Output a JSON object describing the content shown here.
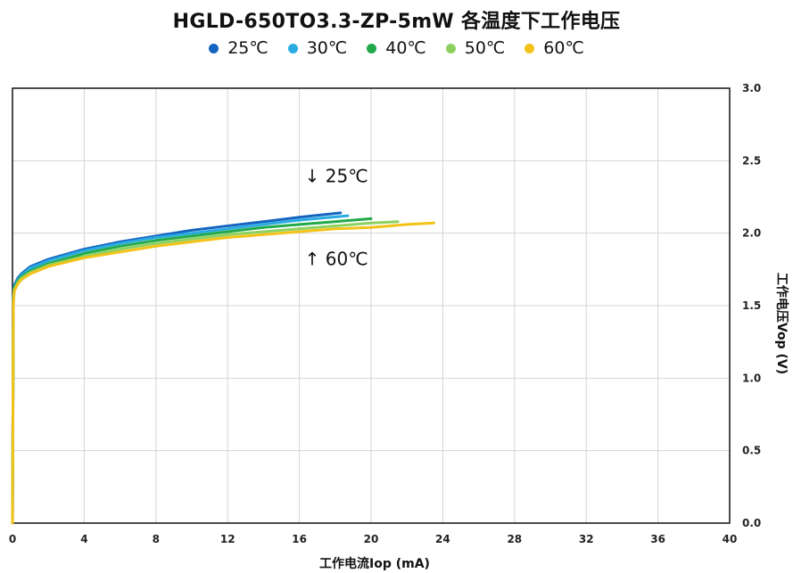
{
  "chart_data": {
    "type": "line",
    "title": "HGLD-650TO3.3-ZP-5mW  各温度下工作电压",
    "xlabel": "工作电流Iop  (mA)",
    "ylabel": "工作电压Vop  (V)",
    "xlim": [
      0,
      40
    ],
    "ylim": [
      0,
      3.0
    ],
    "x_ticks": [
      "0",
      "4",
      "8",
      "12",
      "16",
      "20",
      "24",
      "28",
      "32",
      "36",
      "40"
    ],
    "y_ticks": [
      "0.0",
      "0.5",
      "1.0",
      "1.5",
      "2.0",
      "2.5",
      "3.0"
    ],
    "grid": true,
    "y_axis_side": "right",
    "legend_position": "top-center",
    "series": [
      {
        "name": "25℃",
        "color": "#1565C0",
        "x": [
          0,
          0.05,
          0.1,
          0.3,
          0.5,
          1,
          2,
          4,
          6,
          8,
          10,
          12,
          14,
          16,
          18.3
        ],
        "y": [
          0,
          1.55,
          1.64,
          1.69,
          1.72,
          1.77,
          1.82,
          1.89,
          1.94,
          1.98,
          2.02,
          2.05,
          2.08,
          2.11,
          2.14
        ]
      },
      {
        "name": "30℃",
        "color": "#29ABE2",
        "x": [
          0,
          0.05,
          0.1,
          0.3,
          0.5,
          1,
          2,
          4,
          6,
          8,
          10,
          12,
          14,
          16,
          18.7
        ],
        "y": [
          0,
          1.54,
          1.63,
          1.68,
          1.71,
          1.76,
          1.81,
          1.88,
          1.93,
          1.97,
          2.0,
          2.03,
          2.06,
          2.09,
          2.12
        ]
      },
      {
        "name": "40℃",
        "color": "#22A94A",
        "x": [
          0,
          0.05,
          0.1,
          0.3,
          0.5,
          1,
          2,
          4,
          6,
          8,
          10,
          12,
          14,
          16,
          18,
          20
        ],
        "y": [
          0,
          1.53,
          1.62,
          1.67,
          1.7,
          1.74,
          1.79,
          1.86,
          1.91,
          1.95,
          1.98,
          2.01,
          2.04,
          2.06,
          2.08,
          2.1
        ]
      },
      {
        "name": "50℃",
        "color": "#8CD15F",
        "x": [
          0,
          0.05,
          0.1,
          0.3,
          0.5,
          1,
          2,
          4,
          6,
          8,
          10,
          12,
          14,
          16,
          18,
          20,
          21.5
        ],
        "y": [
          0,
          1.52,
          1.61,
          1.66,
          1.69,
          1.73,
          1.78,
          1.84,
          1.89,
          1.93,
          1.96,
          1.99,
          2.01,
          2.03,
          2.05,
          2.07,
          2.08
        ]
      },
      {
        "name": "60℃",
        "color": "#F2C218",
        "x": [
          0,
          0.05,
          0.1,
          0.3,
          0.5,
          1,
          2,
          4,
          6,
          8,
          10,
          12,
          14,
          16,
          18,
          20,
          22,
          23.5
        ],
        "y": [
          0,
          1.51,
          1.6,
          1.65,
          1.68,
          1.72,
          1.77,
          1.83,
          1.87,
          1.91,
          1.94,
          1.97,
          1.99,
          2.01,
          2.03,
          2.04,
          2.06,
          2.07
        ]
      }
    ],
    "annotations": [
      {
        "text": "↓ 25℃",
        "x": 16.3,
        "y": 2.35
      },
      {
        "text": "↑ 60℃",
        "x": 16.3,
        "y": 1.78
      }
    ]
  }
}
